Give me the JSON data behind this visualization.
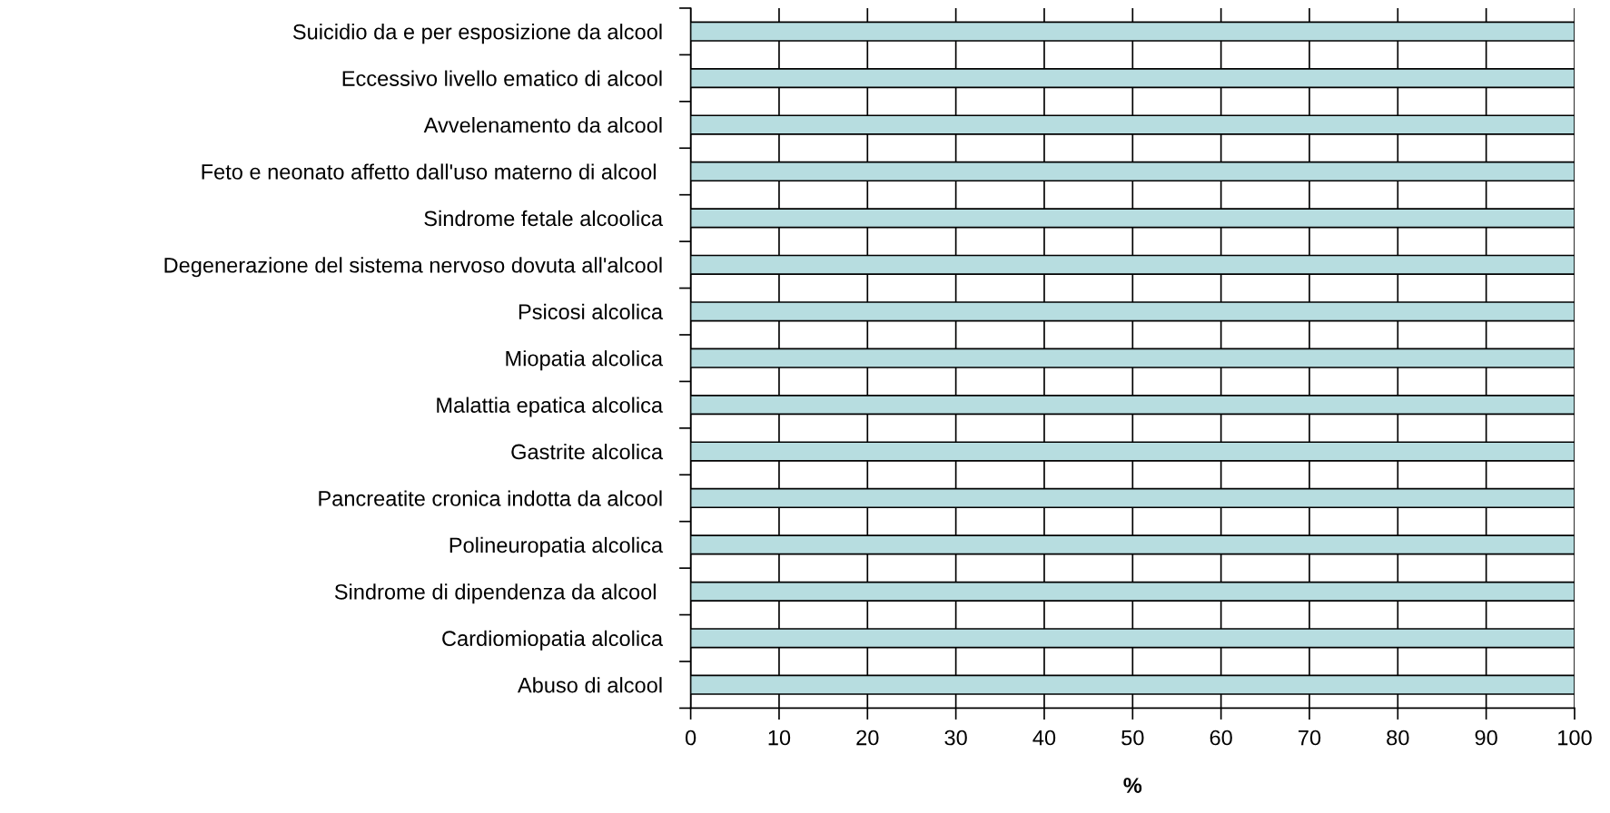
{
  "chart_data": {
    "type": "bar",
    "orientation": "horizontal",
    "xlabel": "%",
    "categories": [
      "Suicidio da e per esposizione da alcool",
      "Eccessivo livello ematico di alcool",
      "Avvelenamento da alcool",
      "Feto e neonato affetto dall'uso materno di alcool ",
      "Sindrome fetale alcoolica",
      "Degenerazione del sistema nervoso dovuta all'alcool",
      "Psicosi alcolica",
      "Miopatia alcolica",
      "Malattia epatica alcolica",
      "Gastrite alcolica",
      "Pancreatite cronica indotta da alcool",
      "Polineuropatia alcolica",
      "Sindrome di dipendenza da alcool ",
      "Cardiomiopatia alcolica",
      "Abuso di alcool"
    ],
    "values": [
      100,
      100,
      100,
      100,
      100,
      100,
      100,
      100,
      100,
      100,
      100,
      100,
      100,
      100,
      100
    ],
    "color": "#b7dde0",
    "xlim": [
      0,
      100
    ],
    "xticks": [
      0,
      10,
      20,
      30,
      40,
      50,
      60,
      70,
      80,
      90,
      100
    ],
    "grid": "x",
    "legend": false
  }
}
